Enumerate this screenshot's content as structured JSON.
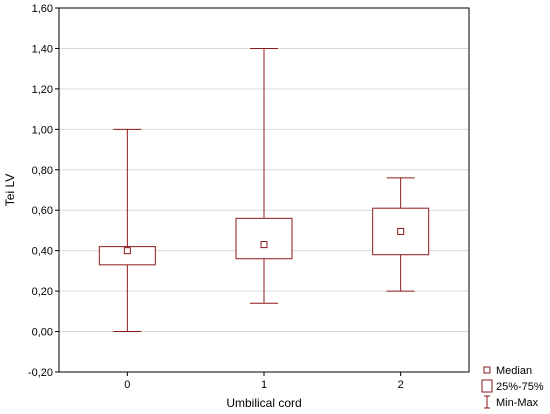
{
  "chart_data": {
    "type": "boxplot",
    "xlabel": "Umbilical cord",
    "ylabel": "Tei LV",
    "ylim": [
      -0.2,
      1.6
    ],
    "ytick_values": [
      -0.2,
      0,
      0.2,
      0.4,
      0.6,
      0.8,
      1.0,
      1.2,
      1.4,
      1.6
    ],
    "ytick_labels": [
      "-0,20",
      "0,00",
      "0,20",
      "0,40",
      "0,60",
      "0,80",
      "1,00",
      "1,20",
      "1,40",
      "1,60"
    ],
    "categories": [
      "0",
      "1",
      "2"
    ],
    "grid": true,
    "legend_position": "bottom-right",
    "boxes": [
      {
        "category": "0",
        "min": 0.0,
        "q1": 0.33,
        "median": 0.4,
        "q3": 0.42,
        "max": 1.0
      },
      {
        "category": "1",
        "min": 0.14,
        "q1": 0.36,
        "median": 0.43,
        "q3": 0.56,
        "max": 1.4
      },
      {
        "category": "2",
        "min": 0.2,
        "q1": 0.38,
        "median": 0.495,
        "q3": 0.61,
        "max": 0.76
      }
    ],
    "legend": [
      {
        "symbol": "median",
        "label": "Median"
      },
      {
        "symbol": "box",
        "label": "25%-75%"
      },
      {
        "symbol": "whisker",
        "label": "Min-Max"
      }
    ],
    "colors": {
      "box": "#8b1a1a",
      "grid": "#d9d9d9",
      "frame": "#000000"
    }
  }
}
